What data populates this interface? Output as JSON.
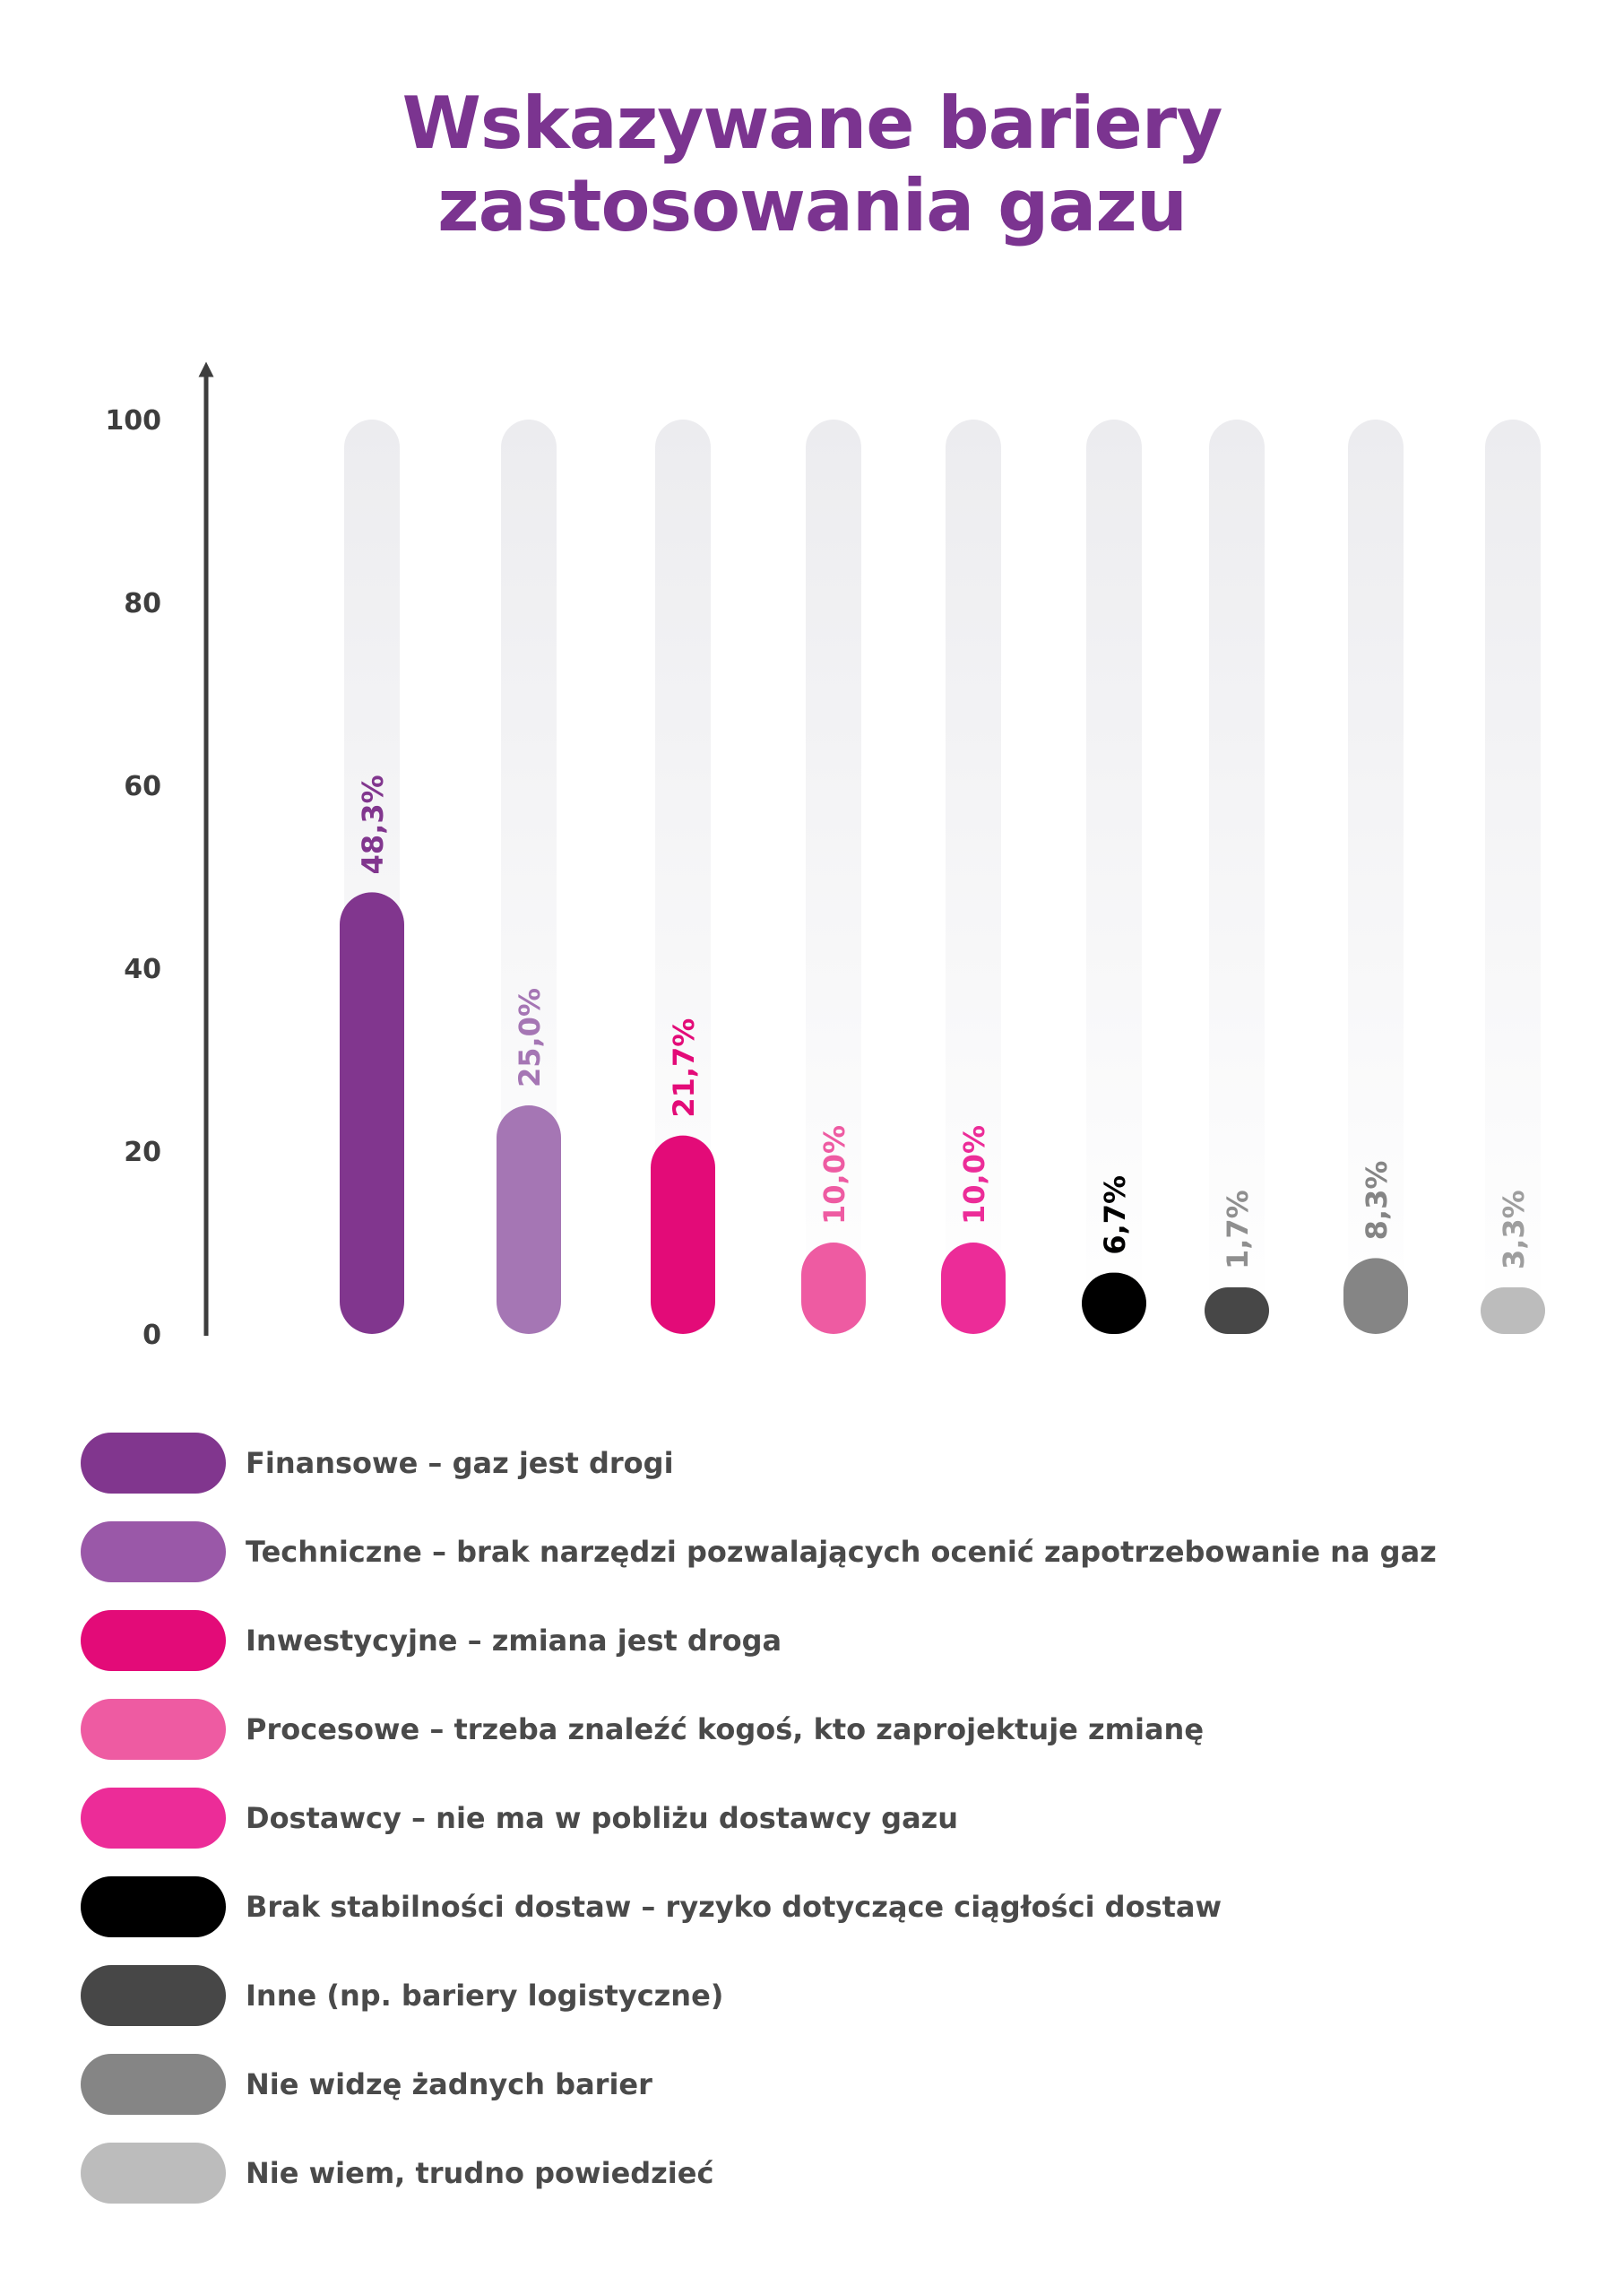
{
  "chart_data": {
    "type": "bar",
    "title": [
      "Wskazywane bariery",
      "zastosowania gazu"
    ],
    "yticks": [
      0,
      20,
      40,
      60,
      80,
      100
    ],
    "ylim": [
      0,
      100
    ],
    "categories": [
      "Finansowe – gaz jest drogi",
      "Techniczne – brak narzędzi pozwalających ocenić zapotrzebowanie na gaz",
      "Inwestycyjne – zmiana jest droga",
      "Procesowe – trzeba znaleźć kogoś, kto zaprojektuje zmianę",
      "Dostawcy – nie ma w pobliżu dostawcy gazu",
      "Brak stabilności dostaw – ryzyko dotyczące ciągłości dostaw",
      "Inne (np. bariery logistyczne)",
      "Nie widzę żadnych barier",
      "Nie wiem, trudno powiedzieć"
    ],
    "values": [
      48.3,
      25.0,
      21.7,
      10.0,
      10.0,
      6.7,
      1.7,
      8.3,
      3.3
    ],
    "value_labels": [
      "48,3%",
      "25,0%",
      "21,7%",
      "10,0%",
      "10,0%",
      "6,7%",
      "1,7%",
      "8,3%",
      "3,3%"
    ],
    "colors": [
      "#81368e",
      "#a576b4",
      "#e30b78",
      "#ee5ba2",
      "#ec2c98",
      "#000000",
      "#474747",
      "#858585",
      "#bcbcbc"
    ],
    "legend_colors": [
      "#81368e",
      "#9a58a8",
      "#e30b78",
      "#ee5ba2",
      "#ec2c98",
      "#000000",
      "#474747",
      "#858585",
      "#bcbcbc"
    ],
    "label_colors": [
      "#81368e",
      "#a576b4",
      "#e30b78",
      "#ee5ba2",
      "#ec2c98",
      "#000000",
      "#8f8f8f",
      "#858585",
      "#9e9e9e"
    ],
    "track_color": "#efeff2",
    "axis_color": "#3d3d3d"
  }
}
